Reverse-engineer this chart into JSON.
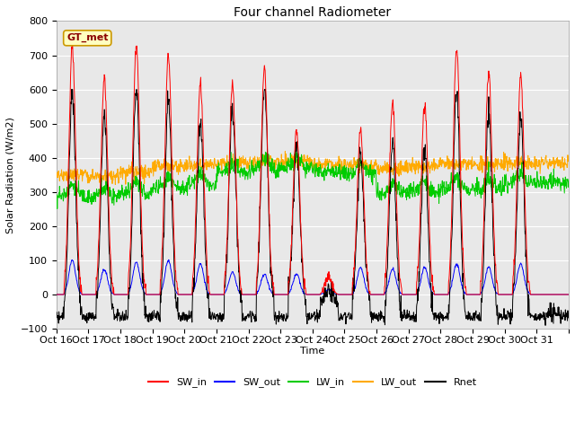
{
  "title": "Four channel Radiometer",
  "xlabel": "Time",
  "ylabel": "Solar Radiation (W/m2)",
  "ylim": [
    -100,
    800
  ],
  "background_color": "#ffffff",
  "plot_bg_color": "#e8e8e8",
  "grid_color": "#ffffff",
  "legend_labels": [
    "SW_in",
    "SW_out",
    "LW_in",
    "LW_out",
    "Rnet"
  ],
  "legend_colors": [
    "#ff0000",
    "#0000ff",
    "#00cc00",
    "#ffaa00",
    "#000000"
  ],
  "station_label": "GT_met",
  "xtick_labels": [
    "Oct 16",
    "Oct 17",
    "Oct 18",
    "Oct 19",
    "Oct 20",
    "Oct 21",
    "Oct 22",
    "Oct 23",
    "Oct 24",
    "Oct 25",
    "Oct 26",
    "Oct 27",
    "Oct 28",
    "Oct 29",
    "Oct 30",
    "Oct 31"
  ],
  "n_days": 16,
  "dt": 0.25,
  "sw_peaks": [
    720,
    630,
    730,
    700,
    620,
    610,
    665,
    480,
    55,
    480,
    560,
    560,
    720,
    650,
    640,
    0
  ],
  "sw_out_peaks": [
    100,
    75,
    95,
    100,
    90,
    65,
    60,
    60,
    15,
    80,
    75,
    80,
    90,
    80,
    90,
    0
  ],
  "lw_in_base": [
    290,
    285,
    295,
    310,
    320,
    355,
    365,
    370,
    360,
    355,
    295,
    300,
    310,
    310,
    325,
    330
  ],
  "lw_out_base": [
    350,
    345,
    360,
    375,
    380,
    385,
    390,
    390,
    380,
    380,
    370,
    375,
    385,
    380,
    385,
    385
  ],
  "night_rnet": -65,
  "figsize": [
    6.4,
    4.8
  ],
  "dpi": 100
}
